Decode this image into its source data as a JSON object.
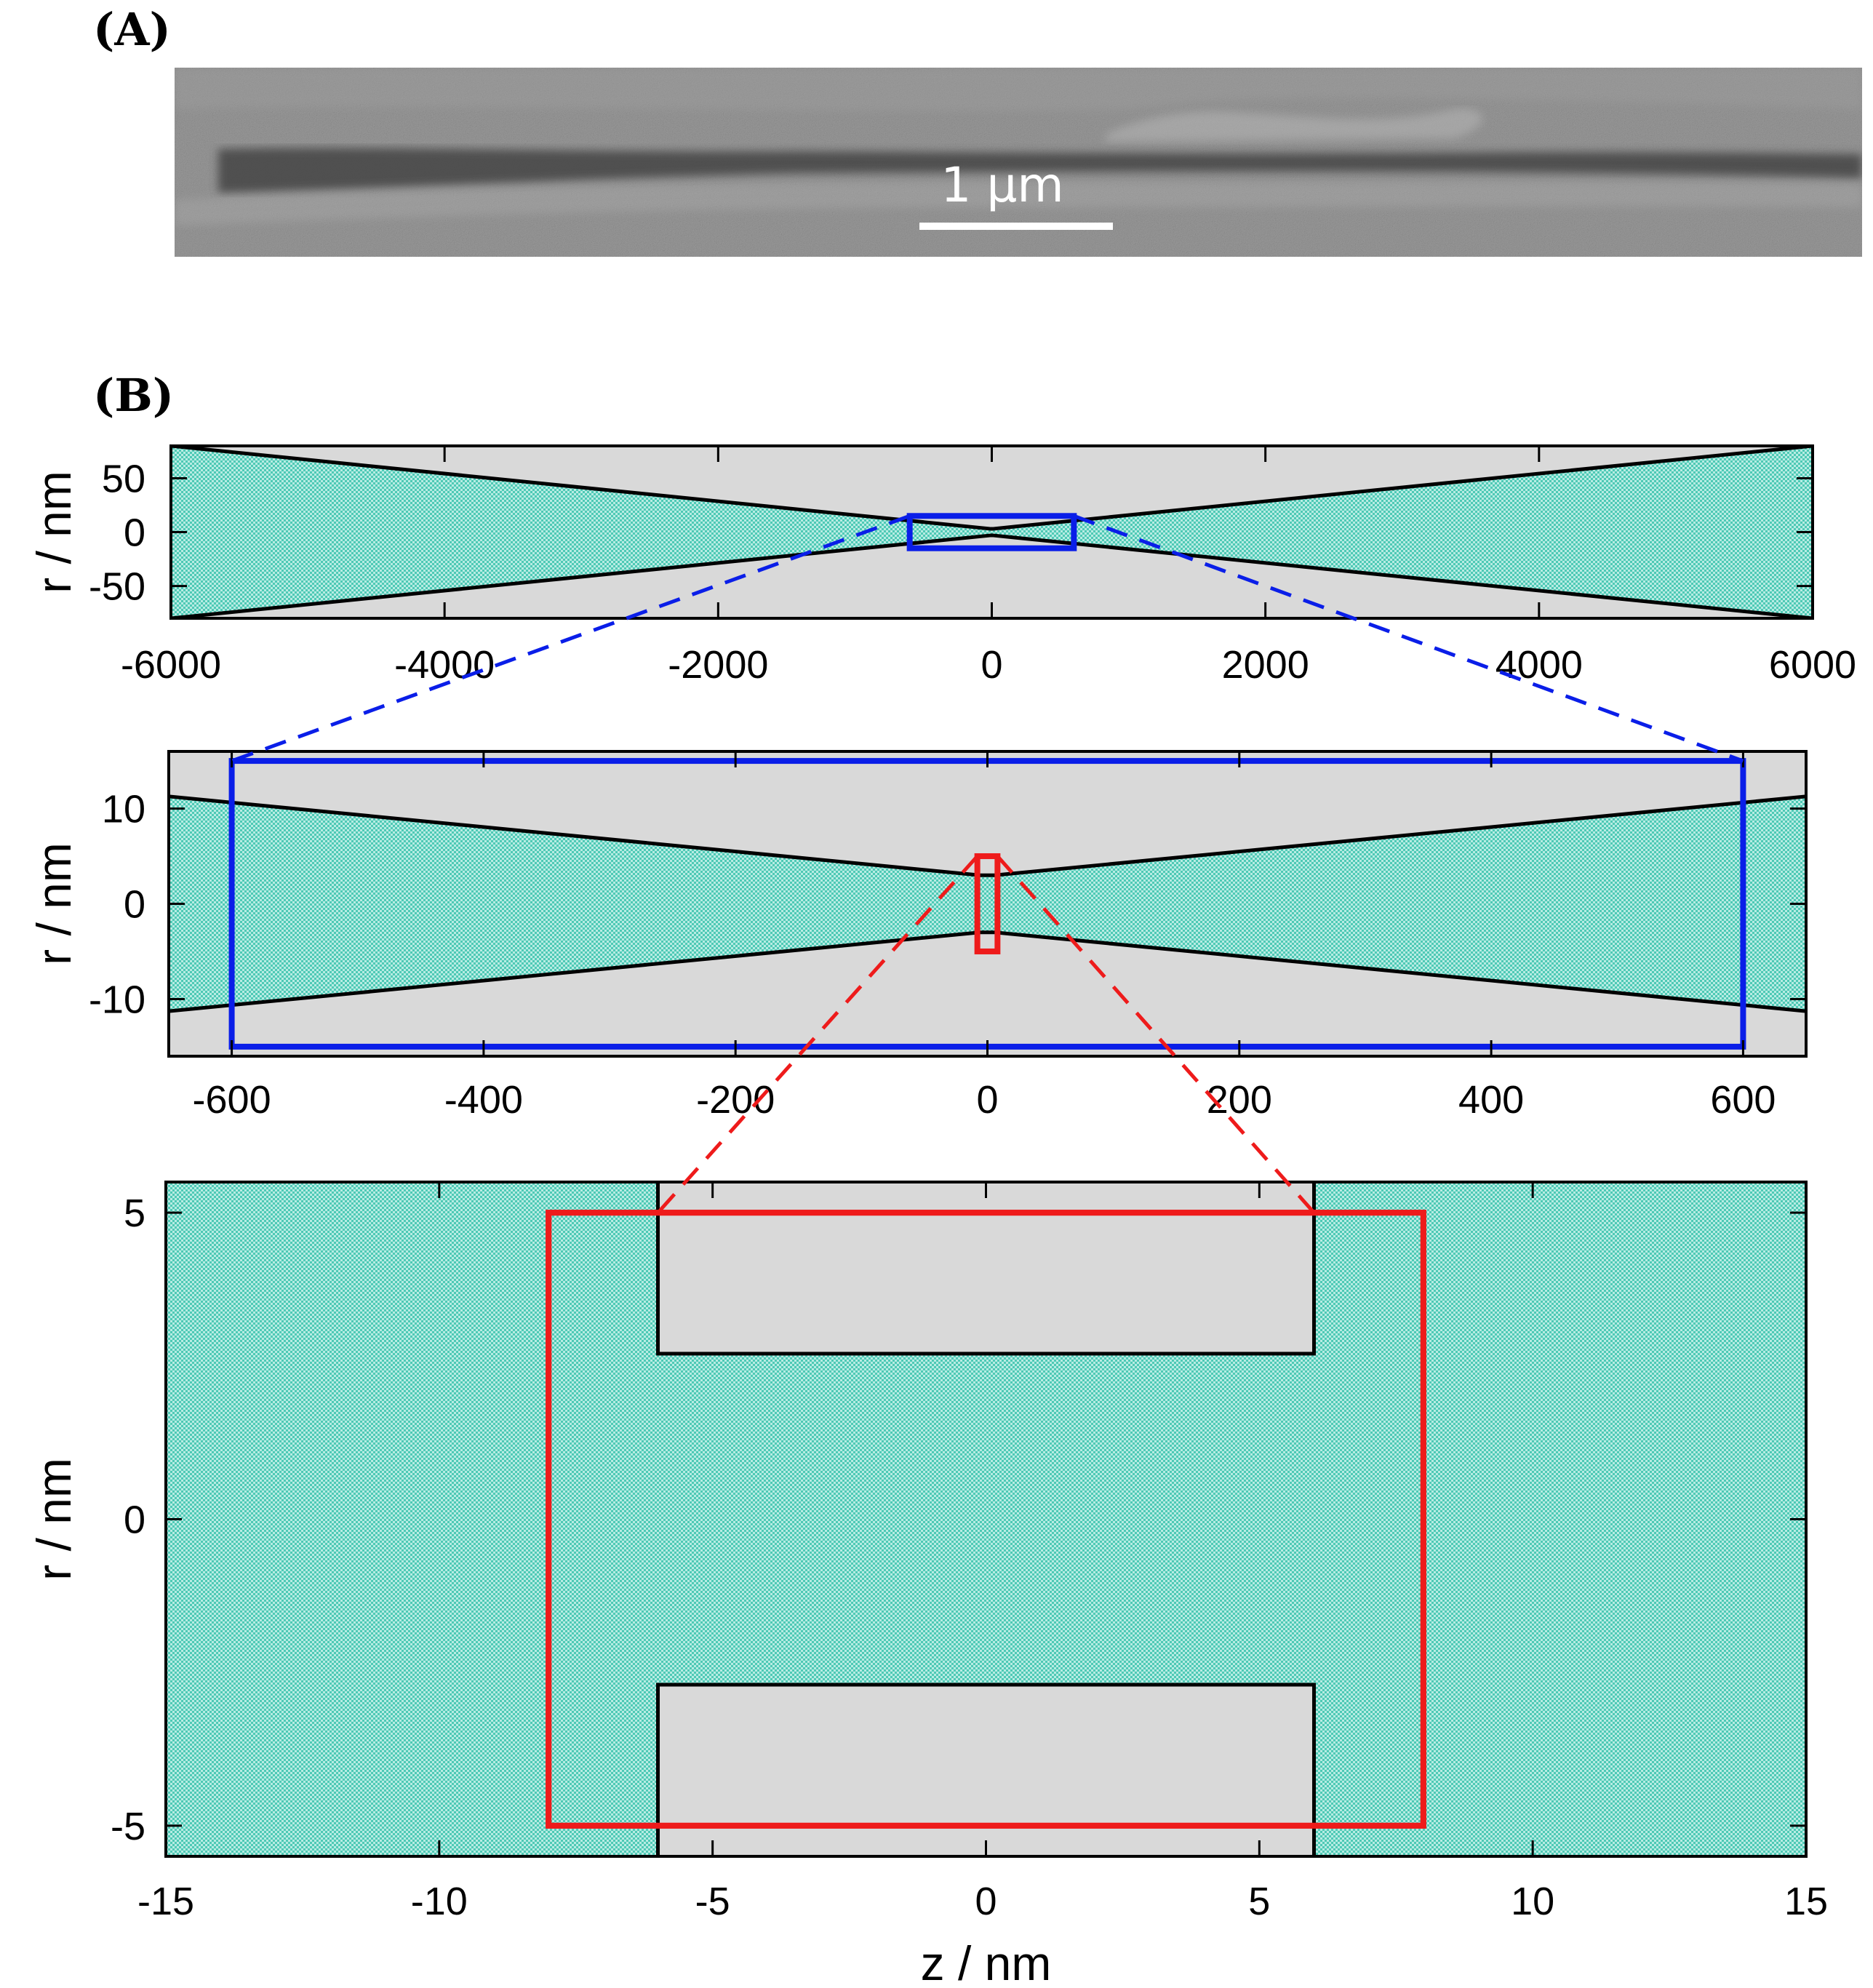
{
  "panel_a": {
    "label": "(A)",
    "scale_bar_label": "1 μm"
  },
  "panel_b": {
    "label": "(B)"
  },
  "colors": {
    "fluid": "#7fd9c9",
    "solid": "#d9d9d9",
    "outline": "#000000",
    "zoom_blue": "#0a1ee8",
    "zoom_red": "#ee1b1b",
    "sem_background": "#8a8a8a"
  },
  "chart_data": [
    {
      "type": "diagram",
      "ylabel": "r / nm",
      "xlim": [
        -6000,
        6000
      ],
      "ylim": [
        -80,
        80
      ],
      "xticks": [
        -6000,
        -4000,
        -2000,
        0,
        2000,
        4000,
        6000
      ],
      "yticks": [
        -50,
        0,
        50
      ],
      "ytick_labels": [
        "-50",
        "0",
        "50"
      ],
      "pore": {
        "tip_radius": 3,
        "tip_half_length": 6,
        "edge_radius": 80
      },
      "zoom_box": {
        "z": [
          -600,
          600
        ],
        "r": [
          -15,
          15
        ]
      }
    },
    {
      "type": "diagram",
      "ylabel": "r / nm",
      "xlim": [
        -650,
        650
      ],
      "ylim": [
        -16,
        16
      ],
      "xticks": [
        -600,
        -400,
        -200,
        0,
        200,
        400,
        600
      ],
      "yticks": [
        -10,
        0,
        10
      ],
      "ytick_labels": [
        "-10",
        "0",
        "10"
      ],
      "pore": {
        "tip_radius": 3,
        "tip_half_length": 6,
        "edge_radius": 80
      },
      "zoom_box": {
        "z": [
          -8,
          8
        ],
        "r": [
          -5,
          5
        ]
      }
    },
    {
      "type": "diagram",
      "xlabel": "z / nm",
      "ylabel": "r / nm",
      "xlim": [
        -15,
        15
      ],
      "ylim": [
        -5.5,
        5.5
      ],
      "xticks": [
        -15,
        -10,
        -5,
        0,
        5,
        10,
        15
      ],
      "yticks": [
        -5,
        0,
        5
      ],
      "ytick_labels": [
        "-5",
        "0",
        "5"
      ],
      "pore": {
        "tip_radius": 2.7,
        "tip_half_length": 6
      },
      "zoom_box": {
        "z": [
          -8,
          8
        ],
        "r": [
          -5,
          5
        ]
      }
    }
  ]
}
